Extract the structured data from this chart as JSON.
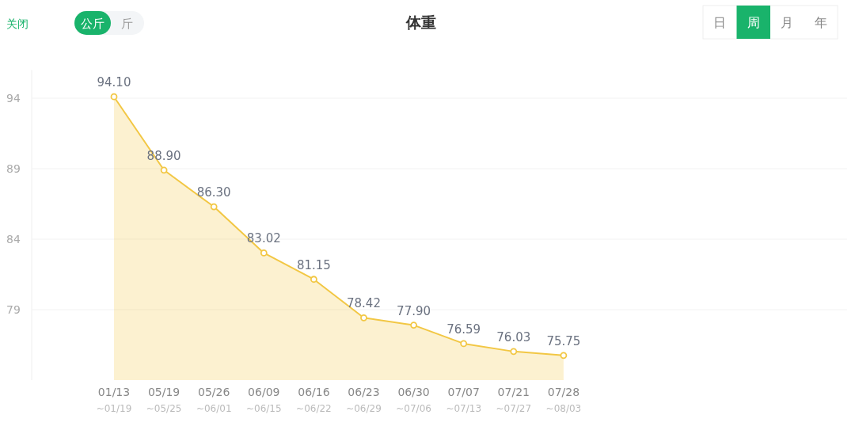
{
  "chart_data": {
    "type": "area",
    "title": "体重",
    "categories": [
      "01/13\n~01/19",
      "05/19\n~05/25",
      "05/26\n~06/01",
      "06/09\n~06/15",
      "06/16\n~06/22",
      "06/23\n~06/29",
      "06/30\n~07/06",
      "07/07\n~07/13",
      "07/21\n~07/27",
      "07/28\n~08/03"
    ],
    "values": [
      94.1,
      88.9,
      86.3,
      83.02,
      81.15,
      78.42,
      77.9,
      76.59,
      76.03,
      75.75
    ],
    "value_labels": [
      "94.10",
      "88.90",
      "86.30",
      "83.02",
      "81.15",
      "78.42",
      "77.90",
      "76.59",
      "76.03",
      "75.75"
    ],
    "color": "#f2c744",
    "ylim": [
      74,
      96
    ],
    "yticks": [
      79,
      84,
      89,
      94
    ],
    "grid": "y",
    "marker": "circle",
    "annotations": [
      "关闭",
      "公斤",
      "斤",
      "日",
      "周",
      "月",
      "年"
    ]
  }
}
